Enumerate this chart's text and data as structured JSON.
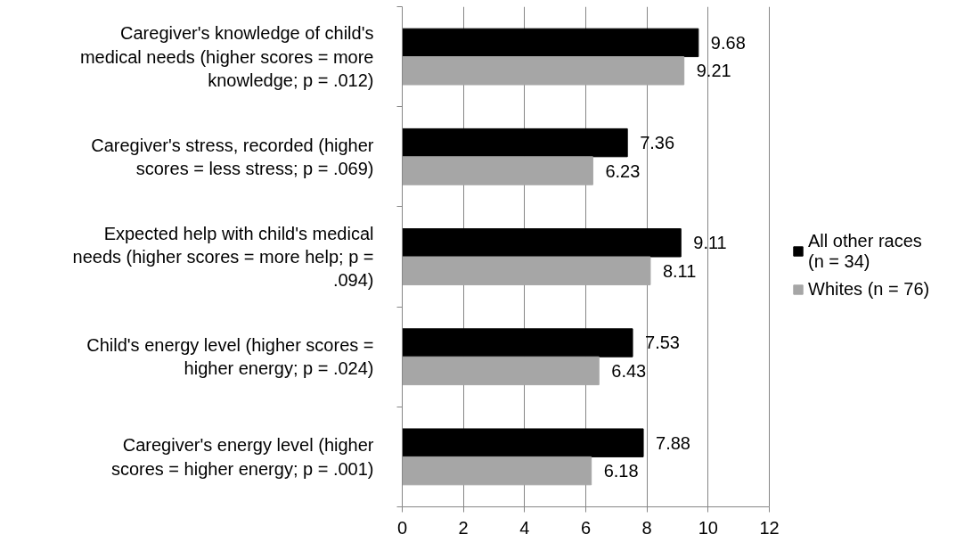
{
  "chart_data": {
    "type": "bar",
    "orientation": "horizontal",
    "categories": [
      "Caregiver's knowledge of child's medical needs (higher scores = more knowledge; p = .012)",
      "Caregiver's stress, recorded (higher scores = less stress; p = .069)",
      "Expected help with child's medical needs (higher scores = more help; p = .094)",
      "Child's energy level (higher scores = higher energy; p = .024)",
      "Caregiver's energy level (higher scores = higher energy; p = .001)"
    ],
    "series": [
      {
        "name": "All other races (n = 34)",
        "color": "#000000",
        "values": [
          9.68,
          7.36,
          9.11,
          7.53,
          7.88
        ]
      },
      {
        "name": "Whites (n = 76)",
        "color": "#a6a6a6",
        "values": [
          9.21,
          6.23,
          8.11,
          6.43,
          6.18
        ]
      }
    ],
    "xlim": [
      0,
      12
    ],
    "xticks": [
      0,
      2,
      4,
      6,
      8,
      10,
      12
    ],
    "grid": "x",
    "legend": "right",
    "data_labels": true
  }
}
